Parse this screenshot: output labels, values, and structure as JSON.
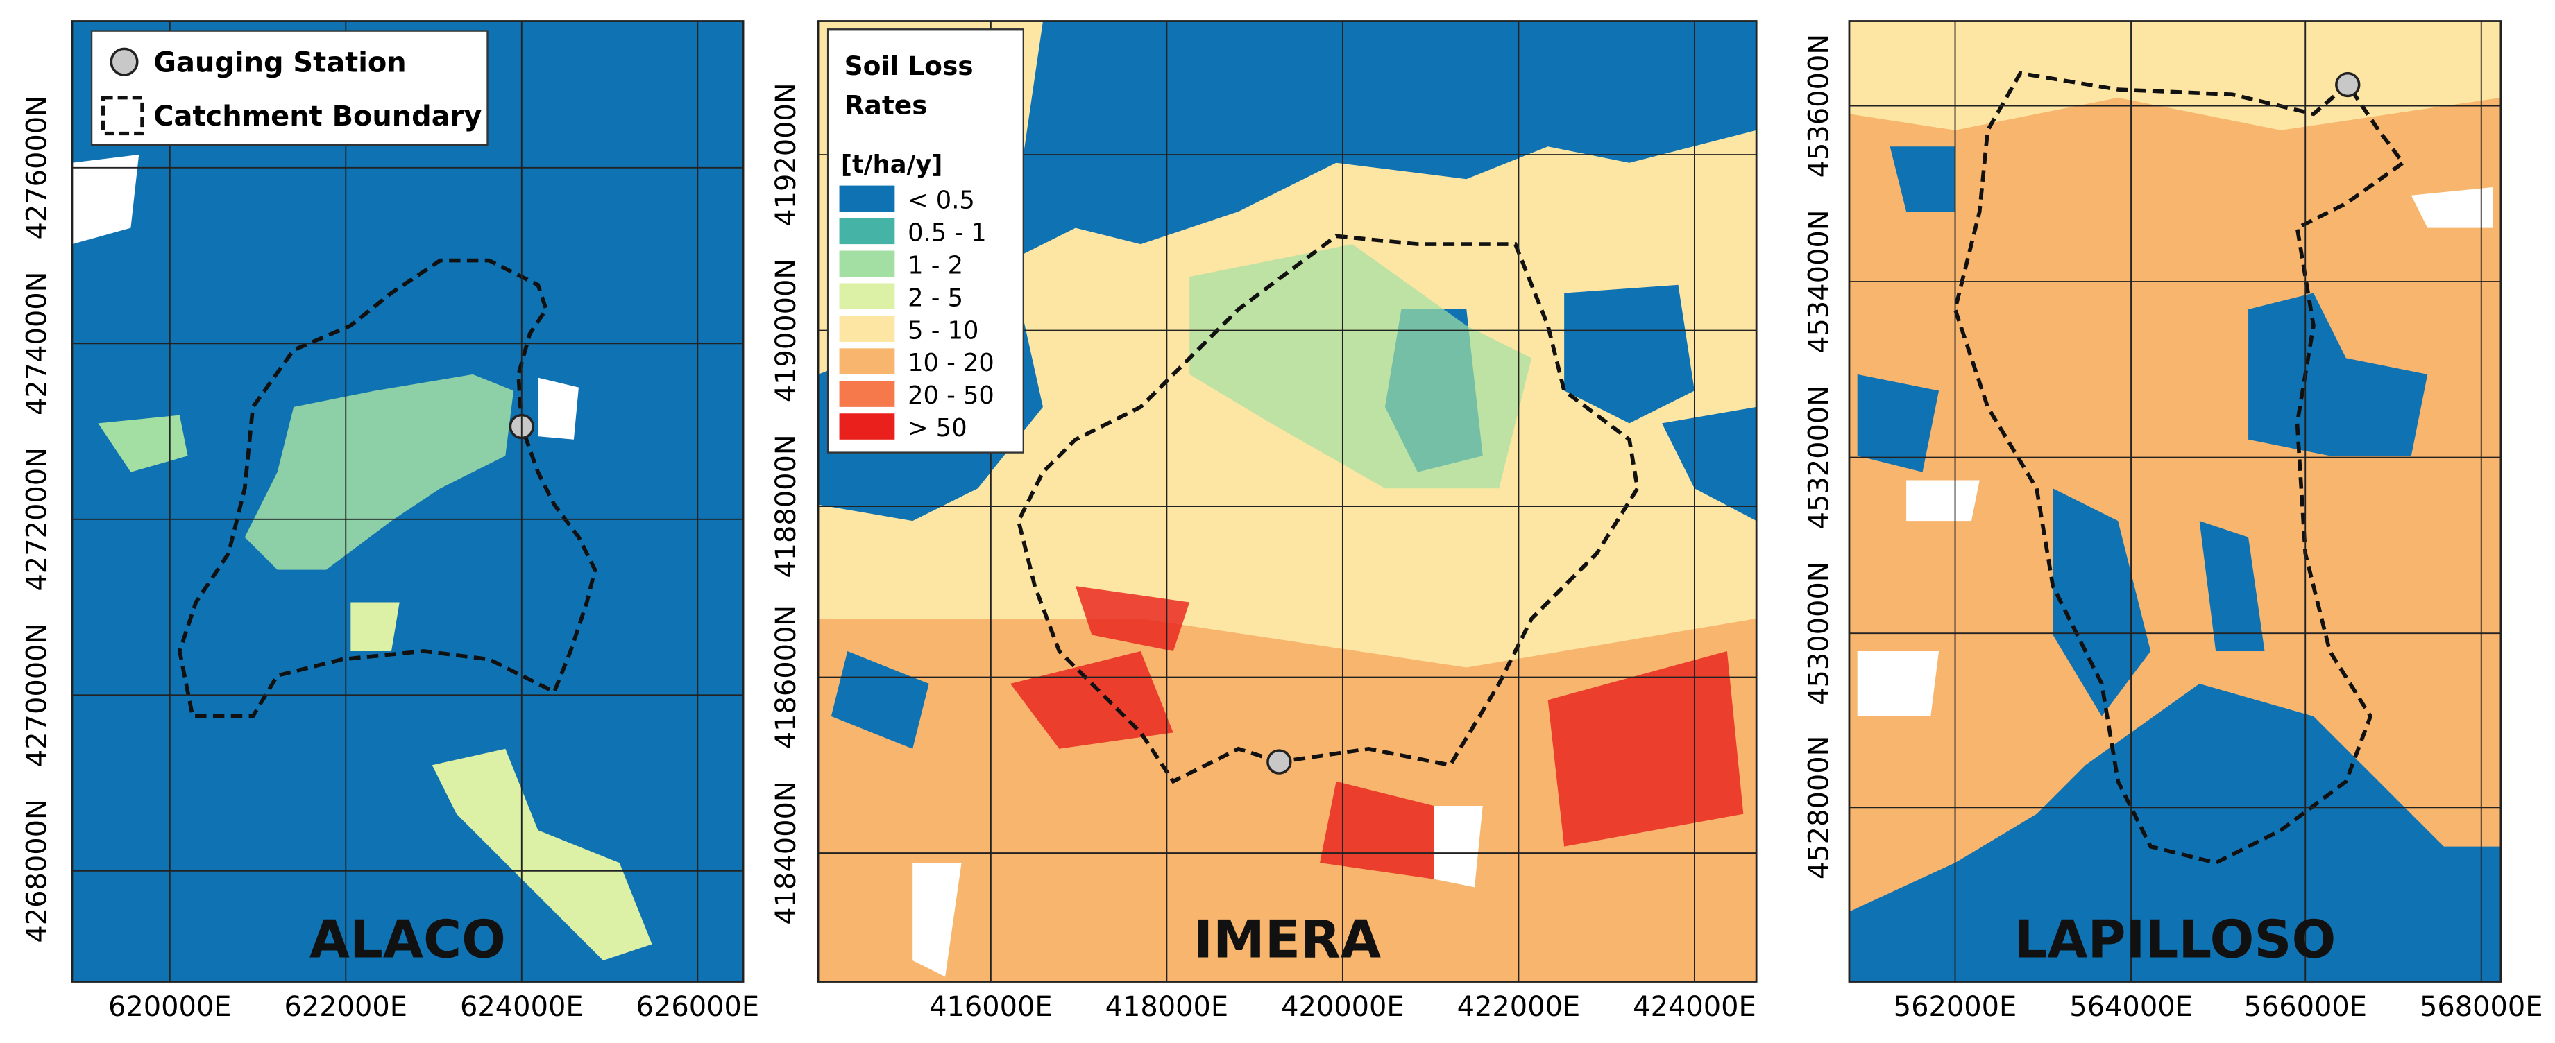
{
  "panels": [
    {
      "name": "ALACO",
      "x_labels": [
        "620000E",
        "622000E",
        "624000E",
        "626000E"
      ],
      "y_labels": [
        "4276000N",
        "4274000N",
        "4272000N",
        "4270000N",
        "4268000N"
      ]
    },
    {
      "name": "IMERA",
      "x_labels": [
        "416000E",
        "418000E",
        "420000E",
        "422000E",
        "424000E"
      ],
      "y_labels": [
        "4192000N",
        "4190000N",
        "4188000N",
        "4186000N",
        "4184000N"
      ]
    },
    {
      "name": "LAPILLOSO",
      "x_labels": [
        "562000E",
        "564000E",
        "566000E",
        "568000E"
      ],
      "y_labels": [
        "4536000N",
        "4534000N",
        "4532000N",
        "4530000N",
        "4528000N"
      ]
    }
  ],
  "legend_symbols": {
    "items": [
      "Gauging Station",
      "Catchment Boundary"
    ]
  },
  "legend_soil": {
    "title": [
      "Soil Loss",
      "Rates"
    ],
    "unit": "[t/ha/y]",
    "classes": [
      {
        "label": "< 0.5",
        "color": "#0f72b2"
      },
      {
        "label": "0.5 - 1",
        "color": "#45b4a6"
      },
      {
        "label": "1 - 2",
        "color": "#a3dfa3"
      },
      {
        "label": "2 - 5",
        "color": "#dcf0a6"
      },
      {
        "label": "5 - 10",
        "color": "#fde6a3"
      },
      {
        "label": "10 - 20",
        "color": "#f8b56d"
      },
      {
        "label": "20 - 50",
        "color": "#f5794a"
      },
      {
        "label": "> 50",
        "color": "#e9201b"
      }
    ]
  }
}
